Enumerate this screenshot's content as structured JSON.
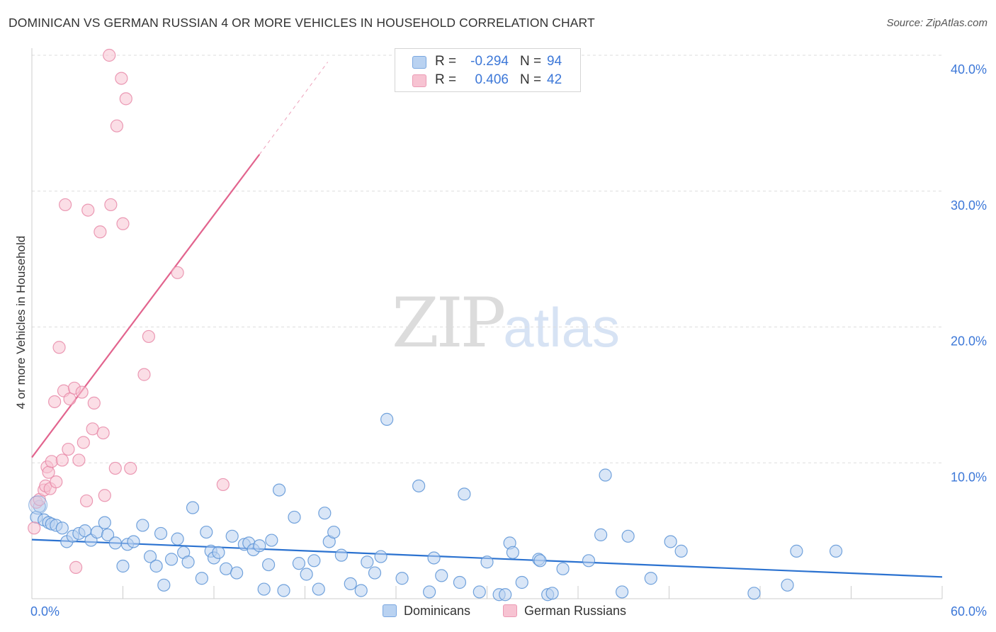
{
  "title": "DOMINICAN VS GERMAN RUSSIAN 4 OR MORE VEHICLES IN HOUSEHOLD CORRELATION CHART",
  "source": "Source: ZipAtlas.com",
  "watermark": {
    "zip": "ZIP",
    "atlas": "atlas"
  },
  "legend": {
    "r_label": "R =",
    "n_label": "N =",
    "dominicans": {
      "r": "-0.294",
      "n": "94"
    },
    "german_russians": {
      "r": "0.406",
      "n": "42"
    }
  },
  "colors": {
    "blue_fill": "#b9d2f1",
    "blue_stroke": "#5b93d6",
    "blue_line": "#2b72d0",
    "pink_fill": "#f7c3d2",
    "pink_stroke": "#e88aa8",
    "pink_line": "#e2648e",
    "axis_text": "#3d78d8"
  },
  "chart_data": {
    "type": "scatter",
    "title": "DOMINICAN VS GERMAN RUSSIAN 4 OR MORE VEHICLES IN HOUSEHOLD CORRELATION CHART",
    "xlabel": "",
    "ylabel": "4 or more Vehicles in Household",
    "xlim": [
      0,
      60
    ],
    "ylim": [
      0,
      40
    ],
    "x_tick_labels": [
      "0.0%",
      "60.0%"
    ],
    "y_ticks": [
      10,
      20,
      30,
      40
    ],
    "y_tick_labels": [
      "10.0%",
      "20.0%",
      "30.0%",
      "40.0%"
    ],
    "grid": true,
    "legend_position": "bottom-center",
    "series": [
      {
        "name": "Dominicans",
        "color": "#5b93d6",
        "trend": {
          "x0": 0,
          "y0": 4.35,
          "x1": 60,
          "y1": 1.6
        },
        "points": [
          [
            0.3,
            6.0
          ],
          [
            0.5,
            6.8
          ],
          [
            0.8,
            5.8
          ],
          [
            1.1,
            5.6
          ],
          [
            1.3,
            5.5
          ],
          [
            1.6,
            5.4
          ],
          [
            2.0,
            5.2
          ],
          [
            2.3,
            4.2
          ],
          [
            2.7,
            4.6
          ],
          [
            3.1,
            4.8
          ],
          [
            3.5,
            5.0
          ],
          [
            3.9,
            4.3
          ],
          [
            4.3,
            4.9
          ],
          [
            4.8,
            5.6
          ],
          [
            5.0,
            4.7
          ],
          [
            5.5,
            4.1
          ],
          [
            6.0,
            2.4
          ],
          [
            6.3,
            4.0
          ],
          [
            6.7,
            4.2
          ],
          [
            7.3,
            5.4
          ],
          [
            7.8,
            3.1
          ],
          [
            8.2,
            2.4
          ],
          [
            8.5,
            4.8
          ],
          [
            8.7,
            1.0
          ],
          [
            9.2,
            2.9
          ],
          [
            9.6,
            4.4
          ],
          [
            10.0,
            3.4
          ],
          [
            10.3,
            2.7
          ],
          [
            10.6,
            6.7
          ],
          [
            11.2,
            1.5
          ],
          [
            11.5,
            4.9
          ],
          [
            11.8,
            3.5
          ],
          [
            12.0,
            3.0
          ],
          [
            12.3,
            3.4
          ],
          [
            12.8,
            2.2
          ],
          [
            13.2,
            4.6
          ],
          [
            13.5,
            1.9
          ],
          [
            14.0,
            4.0
          ],
          [
            14.3,
            4.1
          ],
          [
            14.6,
            3.6
          ],
          [
            15.0,
            3.9
          ],
          [
            15.3,
            0.7
          ],
          [
            15.6,
            2.5
          ],
          [
            15.8,
            4.3
          ],
          [
            16.3,
            8.0
          ],
          [
            16.6,
            0.6
          ],
          [
            17.3,
            6.0
          ],
          [
            17.6,
            2.6
          ],
          [
            18.1,
            1.8
          ],
          [
            18.6,
            2.8
          ],
          [
            18.9,
            0.7
          ],
          [
            19.3,
            6.3
          ],
          [
            19.6,
            4.2
          ],
          [
            19.9,
            4.9
          ],
          [
            20.4,
            3.2
          ],
          [
            21.0,
            1.1
          ],
          [
            21.7,
            0.6
          ],
          [
            22.1,
            2.7
          ],
          [
            22.6,
            1.9
          ],
          [
            23.0,
            3.1
          ],
          [
            23.4,
            13.2
          ],
          [
            24.4,
            1.5
          ],
          [
            25.5,
            8.3
          ],
          [
            26.2,
            0.5
          ],
          [
            26.5,
            3.0
          ],
          [
            27.0,
            1.7
          ],
          [
            28.2,
            1.2
          ],
          [
            28.5,
            7.7
          ],
          [
            29.5,
            0.5
          ],
          [
            30.0,
            2.7
          ],
          [
            30.8,
            0.3
          ],
          [
            31.2,
            0.3
          ],
          [
            31.5,
            4.1
          ],
          [
            31.7,
            3.4
          ],
          [
            32.3,
            1.2
          ],
          [
            33.4,
            2.9
          ],
          [
            33.5,
            2.8
          ],
          [
            34.0,
            0.3
          ],
          [
            34.3,
            0.4
          ],
          [
            35.0,
            2.2
          ],
          [
            36.7,
            2.8
          ],
          [
            37.5,
            4.7
          ],
          [
            37.8,
            9.1
          ],
          [
            38.9,
            0.5
          ],
          [
            39.3,
            4.6
          ],
          [
            40.8,
            1.5
          ],
          [
            42.1,
            4.2
          ],
          [
            42.8,
            3.5
          ],
          [
            47.6,
            0.4
          ],
          [
            49.8,
            1.0
          ],
          [
            50.4,
            3.5
          ],
          [
            53.0,
            3.5
          ]
        ]
      },
      {
        "name": "German Russians",
        "color": "#e88aa8",
        "trend": {
          "x0": 0,
          "y0": 10.4,
          "x1": 15,
          "y1": 32.7
        },
        "trend_dashed": {
          "x0": 15,
          "y0": 32.7,
          "x1": 19.5,
          "y1": 39.5
        },
        "points": [
          [
            0.15,
            5.2
          ],
          [
            0.3,
            7.1
          ],
          [
            0.5,
            7.3
          ],
          [
            0.8,
            8.0
          ],
          [
            0.9,
            8.3
          ],
          [
            1.0,
            9.7
          ],
          [
            1.1,
            9.3
          ],
          [
            1.2,
            8.1
          ],
          [
            1.3,
            10.1
          ],
          [
            1.5,
            14.5
          ],
          [
            1.6,
            8.6
          ],
          [
            1.8,
            18.5
          ],
          [
            2.0,
            10.2
          ],
          [
            2.1,
            15.3
          ],
          [
            2.2,
            29.0
          ],
          [
            2.4,
            11.0
          ],
          [
            2.5,
            14.7
          ],
          [
            2.8,
            15.5
          ],
          [
            2.9,
            2.3
          ],
          [
            3.1,
            10.2
          ],
          [
            3.3,
            15.2
          ],
          [
            3.4,
            11.5
          ],
          [
            3.6,
            7.2
          ],
          [
            3.7,
            28.6
          ],
          [
            4.0,
            12.5
          ],
          [
            4.1,
            14.4
          ],
          [
            4.5,
            27.0
          ],
          [
            4.7,
            12.2
          ],
          [
            4.8,
            7.6
          ],
          [
            5.1,
            40.0
          ],
          [
            5.2,
            29.0
          ],
          [
            5.5,
            9.6
          ],
          [
            5.6,
            34.8
          ],
          [
            5.9,
            38.3
          ],
          [
            6.0,
            27.6
          ],
          [
            6.2,
            36.8
          ],
          [
            6.5,
            9.6
          ],
          [
            7.4,
            16.5
          ],
          [
            7.7,
            19.3
          ],
          [
            9.6,
            24.0
          ],
          [
            12.6,
            8.4
          ]
        ]
      }
    ]
  }
}
